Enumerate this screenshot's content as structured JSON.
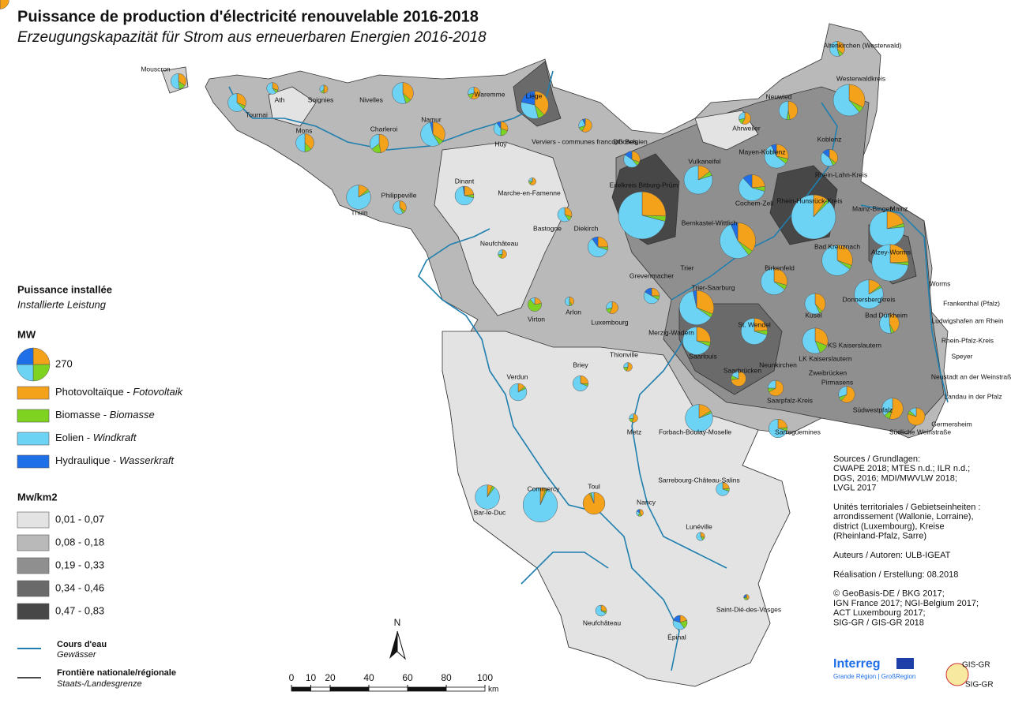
{
  "header": {
    "title": "Puissance de production d'électricité renouvelable 2016-2018",
    "subtitle": "Erzeugungskapazität für Strom aus erneuerbaren Energien 2016-2018"
  },
  "legend": {
    "title": "Puissance installée",
    "title_de": "Installierte Leistung",
    "unit": "MW",
    "reference_mw": 270,
    "series": [
      {
        "name": "Photovoltaïque - ",
        "name_de": "Fotovoltaik",
        "color": "#f5a21b"
      },
      {
        "name": "Biomasse - ",
        "name_de": "Biomasse",
        "color": "#7ed321"
      },
      {
        "name": "Eolien - ",
        "name_de": "Windkraft",
        "color": "#6dd3f5"
      },
      {
        "name": "Hydraulique - ",
        "name_de": "Wasserkraft",
        "color": "#1f6fe8"
      }
    ],
    "density_title": "Mw/km2",
    "classes": [
      {
        "label": "0,01 - 0,07",
        "color": "#e3e3e3"
      },
      {
        "label": "0,08 - 0,18",
        "color": "#b9b9b9"
      },
      {
        "label": "0,19 - 0,33",
        "color": "#8f8f8f"
      },
      {
        "label": "0,34 - 0,46",
        "color": "#6a6a6a"
      },
      {
        "label": "0,47 - 0,83",
        "color": "#474747"
      }
    ],
    "river": "Cours d'eau",
    "river_de": "Gewässer",
    "border": "Frontière nationale/régionale",
    "border_de": "Staats-/Landesgrenze"
  },
  "places": [
    {
      "label": "Mouscron",
      "mw": [
        20,
        8,
        30,
        0
      ]
    },
    {
      "label": "Tournai",
      "mw": [
        25,
        5,
        50,
        0
      ]
    },
    {
      "label": "Ath",
      "mw": [
        10,
        3,
        20,
        0
      ]
    },
    {
      "label": "Soignies",
      "mw": [
        8,
        2,
        6,
        0
      ]
    },
    {
      "label": "Mons",
      "mw": [
        30,
        10,
        40,
        0
      ]
    },
    {
      "label": "Nivelles",
      "mw": [
        40,
        10,
        60,
        0
      ]
    },
    {
      "label": "Charleroi",
      "mw": [
        40,
        15,
        30,
        0
      ]
    },
    {
      "label": "Namur",
      "mw": [
        50,
        10,
        80,
        5
      ]
    },
    {
      "label": "Waremme",
      "mw": [
        20,
        5,
        10,
        0
      ]
    },
    {
      "label": "Liège",
      "mw": [
        70,
        15,
        60,
        40
      ]
    },
    {
      "label": "Huy",
      "mw": [
        15,
        10,
        20,
        5
      ]
    },
    {
      "label": "Verviers - communes francophones",
      "mw": [
        25,
        5,
        10,
        3
      ]
    },
    {
      "label": "DG Belgien",
      "mw": [
        20,
        5,
        30,
        10
      ]
    },
    {
      "label": "Thuin",
      "mw": [
        20,
        5,
        120,
        0
      ]
    },
    {
      "label": "Philippeville",
      "mw": [
        15,
        3,
        25,
        0
      ]
    },
    {
      "label": "Dinant",
      "mw": [
        20,
        5,
        60,
        2
      ]
    },
    {
      "label": "Marche-en-Famenne",
      "mw": [
        8,
        2,
        3,
        0
      ]
    },
    {
      "label": "Neufchâteau",
      "mw": [
        10,
        3,
        5,
        0
      ]
    },
    {
      "label": "Bastogne",
      "mw": [
        15,
        5,
        30,
        0
      ]
    },
    {
      "label": "Virton",
      "mw": [
        10,
        30,
        5,
        0
      ]
    },
    {
      "label": "Arlon",
      "mw": [
        8,
        2,
        10,
        0
      ]
    },
    {
      "label": "Diekirch",
      "mw": [
        25,
        5,
        60,
        10
      ]
    },
    {
      "label": "Grevenmacher",
      "mw": [
        15,
        5,
        30,
        10
      ]
    },
    {
      "label": "Luxembourg",
      "mw": [
        20,
        5,
        10,
        0
      ]
    },
    {
      "label": "Altenkirchen (Westerwald)",
      "mw": [
        20,
        5,
        30,
        0
      ]
    },
    {
      "label": "Westerwaldkreis",
      "mw": [
        80,
        15,
        150,
        0
      ]
    },
    {
      "label": "Neuwied",
      "mw": [
        40,
        5,
        40,
        0
      ]
    },
    {
      "label": "Ahrweiler",
      "mw": [
        20,
        5,
        10,
        0
      ]
    },
    {
      "label": "Koblenz"
    },
    {
      "label": "Mayen-Koblenz",
      "mw": [
        40,
        10,
        80,
        10
      ]
    },
    {
      "label": "Vulkaneifel",
      "mw": [
        30,
        10,
        160,
        0
      ]
    },
    {
      "label": "Eifelkreis Bitburg-Prüm",
      "mw": [
        140,
        20,
        390,
        0
      ]
    },
    {
      "label": "Cochem-Zell",
      "mw": [
        40,
        10,
        100,
        20
      ]
    },
    {
      "label": "Rhein-Hunsrück-Kreis",
      "mw": [
        50,
        10,
        420,
        0
      ]
    },
    {
      "label": "Rhein-Lahn-Kreis",
      "mw": [
        25,
        5,
        30,
        10
      ]
    },
    {
      "label": "Mainz-Bingen",
      "mw": [
        60,
        10,
        230,
        0
      ]
    },
    {
      "label": "Mainz"
    },
    {
      "label": "Bernkastel-Wittlich",
      "mw": [
        110,
        15,
        170,
        20
      ]
    },
    {
      "label": "Bad Kreuznach",
      "mw": [
        70,
        10,
        150,
        0
      ]
    },
    {
      "label": "Alzey-Worms",
      "mw": [
        80,
        10,
        240,
        0
      ]
    },
    {
      "label": "Worms"
    },
    {
      "label": "Trier"
    },
    {
      "label": "Trier-Saarburg",
      "mw": [
        90,
        10,
        180,
        10
      ]
    },
    {
      "label": "Birkenfeld",
      "mw": [
        50,
        10,
        110,
        0
      ]
    },
    {
      "label": "Donnersbergkreis",
      "mw": [
        30,
        5,
        170,
        0
      ]
    },
    {
      "label": "Frankenthal (Pfalz)"
    },
    {
      "label": "Ludwigshafen am Rhein"
    },
    {
      "label": "Rhein-Pfalz-Kreis"
    },
    {
      "label": "Bad Dürkheim",
      "mw": [
        40,
        5,
        50,
        0
      ]
    },
    {
      "label": "Kusel",
      "mw": [
        40,
        5,
        60,
        0
      ]
    },
    {
      "label": "St. Wendel",
      "mw": [
        40,
        10,
        120,
        0
      ]
    },
    {
      "label": "Merzig-Wadern",
      "mw": [
        50,
        10,
        130,
        0
      ]
    },
    {
      "label": "KS Kaiserslautern"
    },
    {
      "label": "LK Kaiserslautern",
      "mw": [
        50,
        20,
        90,
        0
      ]
    },
    {
      "label": "Speyer"
    },
    {
      "label": "Neustadt an der Weinstraße"
    },
    {
      "label": "Landau in der Pfalz"
    },
    {
      "label": "Saarlouis",
      "mw": [
        40,
        10,
        30,
        0
      ]
    },
    {
      "label": "Neunkirchen"
    },
    {
      "label": "Saarbrücken",
      "mw": [
        40,
        5,
        10,
        0
      ]
    },
    {
      "label": "Zweibrücken"
    },
    {
      "label": "Pirmasens",
      "mw": [
        40,
        5,
        20,
        0
      ]
    },
    {
      "label": "Saarpfalz-Kreis",
      "mw": [
        40,
        5,
        15,
        0
      ]
    },
    {
      "label": "Südwestpfalz",
      "mw": [
        60,
        10,
        40,
        0
      ]
    },
    {
      "label": "Südliche Weinstraße",
      "mw": [
        60,
        5,
        10,
        0
      ]
    },
    {
      "label": "Germersheim"
    },
    {
      "label": "Sarreguemines",
      "mw": [
        20,
        5,
        60,
        0
      ]
    },
    {
      "label": "Thionville",
      "mw": [
        10,
        3,
        5,
        0
      ]
    },
    {
      "label": "Verdun",
      "mw": [
        10,
        3,
        60,
        0
      ]
    },
    {
      "label": "Briey",
      "mw": [
        15,
        3,
        40,
        0
      ]
    },
    {
      "label": "Metz",
      "mw": [
        10,
        3,
        5,
        0
      ]
    },
    {
      "label": "Forbach-Boulay-Moselle",
      "mw": [
        30,
        5,
        150,
        0
      ]
    },
    {
      "label": "Sarrebourg-Château-Salins",
      "mw": [
        10,
        3,
        30,
        0
      ]
    },
    {
      "label": "Commercy",
      "mw": [
        15,
        5,
        270,
        0
      ]
    },
    {
      "label": "Bar-le-Duc",
      "mw": [
        10,
        5,
        130,
        0
      ]
    },
    {
      "label": "Toul",
      "mw": [
        110,
        3,
        5,
        0
      ]
    },
    {
      "label": "Nancy",
      "mw": [
        5,
        2,
        3,
        2
      ]
    },
    {
      "label": "Lunéville",
      "mw": [
        5,
        2,
        10,
        0
      ]
    },
    {
      "label": "Neufchâteau",
      "mw": [
        8,
        2,
        20,
        0
      ]
    },
    {
      "label": "Saint-Dié-des-Vosges",
      "mw": [
        3,
        2,
        0,
        2
      ]
    },
    {
      "label": "Épinal",
      "mw": [
        10,
        10,
        20,
        10
      ]
    }
  ],
  "scale": {
    "ticks": [
      0,
      10,
      20,
      40,
      60,
      80,
      100
    ],
    "unit": "km"
  },
  "north": "N",
  "sources": [
    "Sources / Grundlagen:",
    "CWAPE 2018; MTES n.d.; ILR n.d.;",
    "DGS, 2016; MDI/MWVLW 2018;",
    "LVGL 2017",
    "",
    "Unités territoriales / Gebietseinheiten :",
    "arrondissement (Wallonie, Lorraine),",
    "district (Luxembourg), Kreise",
    "(Rheinland-Pfalz, Sarre)",
    "",
    "Auteurs / Autoren: ULB-IGEAT",
    "",
    "Réalisation / Erstellung: 08.2018",
    "",
    "© GeoBasis-DE / BKG 2017;",
    "IGN France 2017; NGI-Belgium 2017;",
    "ACT Luxembourg 2017;",
    "SIG-GR / GIS-GR 2018"
  ],
  "logos": {
    "interreg": "Interreg",
    "region": "Grande Région | GroßRegion",
    "gis": "GIS-GR",
    "sig": "SIG-GR"
  }
}
